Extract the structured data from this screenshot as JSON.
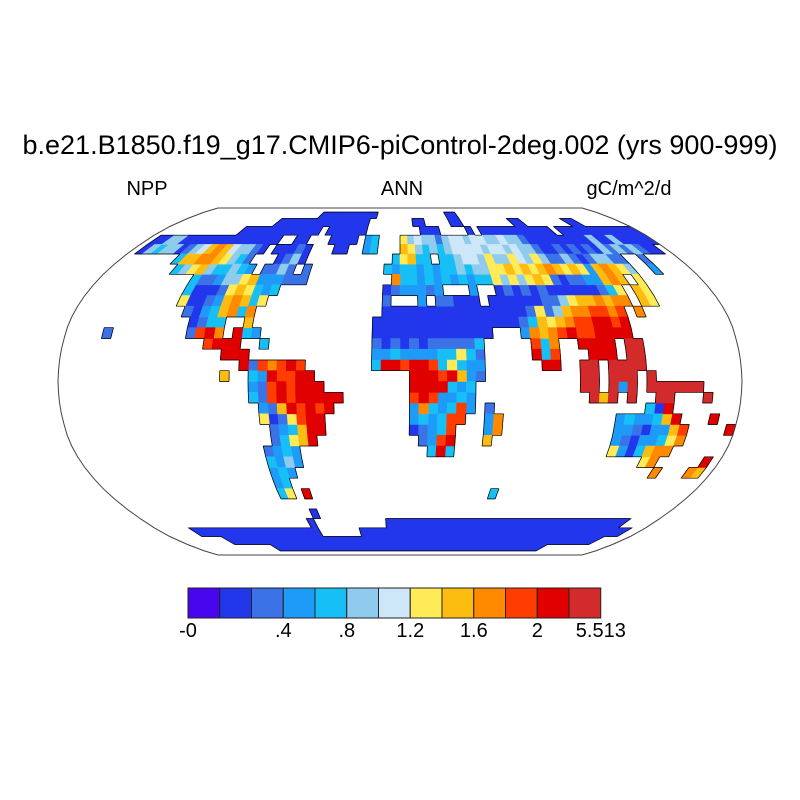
{
  "title": "b.e21.B1850.f19_g17.CMIP6-piControl-2deg.002 (yrs 900-999)",
  "labels": {
    "left": "NPP",
    "center": "ANN",
    "right": "gC/m^2/d"
  },
  "chart_data": {
    "type": "heatmap",
    "title": "b.e21.B1850.f19_g17.CMIP6-piControl-2deg.002 (yrs 900-999)",
    "variable": "NPP",
    "season": "ANN",
    "units": "gC/m^2/d",
    "projection": "Robinson",
    "ocean_color": "#ffffff",
    "outline_color": "#444444",
    "coast_color": "#000000",
    "colorbar": {
      "colors": [
        "#4806EE",
        "#2236EC",
        "#3B72E8",
        "#1E9AF8",
        "#16C0F6",
        "#8FCBEC",
        "#CDE7F8",
        "#FFEB55",
        "#FDBD10",
        "#FF8A00",
        "#FF3D00",
        "#E00000",
        "#D32B2B"
      ],
      "ticks": [
        {
          "label": "-0",
          "edge": 0
        },
        {
          "label": ".4",
          "edge": 3
        },
        {
          "label": ".8",
          "edge": 5
        },
        {
          "label": "1.2",
          "edge": 7
        },
        {
          "label": "1.6",
          "edge": 9
        },
        {
          "label": "2",
          "edge": 11
        },
        {
          "label": "5.513",
          "edge": 13
        }
      ],
      "min_label": "-0",
      "max_label": "5.513"
    },
    "palette": {
      "1": "#4806EE",
      "2": "#2236EC",
      "3": "#3B72E8",
      "4": "#1E9AF8",
      "5": "#16C0F6",
      "6": "#8FCBEC",
      "7": "#CDE7F8",
      "8": "#FFEB55",
      "9": "#FDBD10",
      "A": "#FF8A00",
      "B": "#FF3D00",
      "C": "#E00000",
      "D": "#D32B2B"
    },
    "grid": {
      "cell_deg": 5,
      "lat_start": 90,
      "lon_start": -180,
      "ocean_char": ".",
      "rows": [
        "........................................................................",
        "......................2222222222............22..........................",
        "................222222222222222.......22....22........22.......22.......",
        "............222222222222.222222........222....2.22222222222.222222222222",
        ".226622222222222222..22...2222.45...867663677677667663222222222622622222",
        ".2656623679A976632.22232...22..45...98656567777677676632232323263636322.",
        ".......599AA98653...2362...........58955.556776866876863363236633..3....",
        "........5689655654.3363.3.........54554545565668898989A989849A986..4....",
        "...........53346689444333..........A5545454545586868983233449A9.8.......",
        "...........52223898545............2344434...4..232323222222358.98.......",
        "...........822349A958.............3...4.33222.222222336899A9AA.98.......",
        "............32459A5A..............222222222222222238369AABBAB.A.........",
        ".............2355..9.............222222222222222235989ABBCCBC...........",
        "....3........3BCA.C54............2222222222222...4A9ABCBBCCCC...........",
        "...............BCCC..5...........323232333335.....B5A..CCCC.DD..........",
        ".................CCC.............445444455853.....C5B...CCC.DD..........",
        "...................C3BABCB.......5CCBCCB58544......CC..DD.DDDD..........",
        ".................9..54CBBCC..........CCCBC943..........DD.DDD.D.........",
        "....................43BCBCCC.........CCCC545...........DD.D4D.DDDDDD....",
        "....................53BCBCCCCC.......BCB4454............D9D.D..DD...D...",
        ".....................439CBCBC........4A545B4.3................52C.......",
        ".....................8238BCC.........4545BB..4A............454459C...C..",
        "......................3459CC.........2345B...4A............4432449B....C",
        "......................3589C...........34BC...9.............4324458A.....",
        ".....................3454..............5C5.................84259AA......",
        ".....................5464......................................8A.....C.",
        ".....................454.........................................A...A9.",
        ".....................45.................................................",
        ".....................58.C......................5........................",
        "........................................................................",
        "........................2...............................................",
        ".......................2..........2222222222222222222222222222222222....",
        ".....2222222222222222222......2222222222222222222222222222222222222222..",
        "........222222222222222222222222222222222222222222222222222222222222....",
        "..............22222222222222222222222222222222222222222222222..........",
        "........................................................................"
      ]
    }
  }
}
